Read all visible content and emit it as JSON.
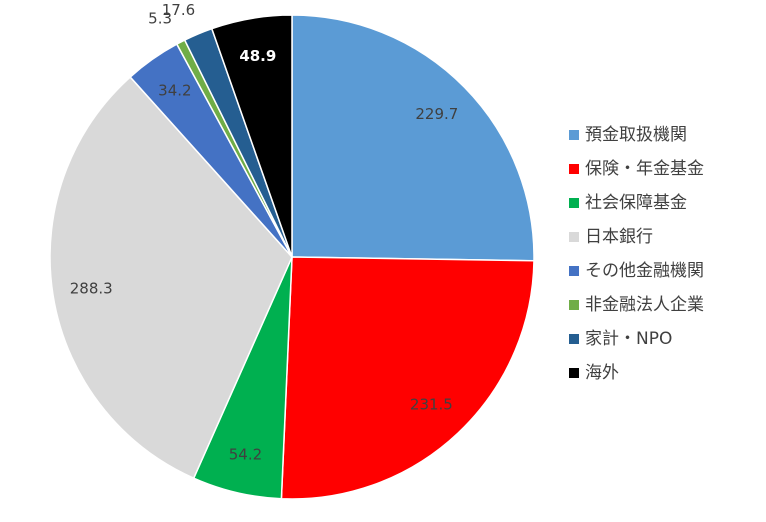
{
  "chart_data": {
    "type": "pie",
    "categories": [
      "預金取扱機関",
      "保険・年金基金",
      "社会保障基金",
      "日本銀行",
      "その他金融機関",
      "非金融法人企業",
      "家計・NPO",
      "海外"
    ],
    "values": [
      229.7,
      231.5,
      54.2,
      288.3,
      34.2,
      5.3,
      17.6,
      48.9
    ],
    "colors": [
      "#5b9bd5",
      "#ff0000",
      "#00b050",
      "#d9d9d9",
      "#4472c4",
      "#70ad47",
      "#255e91",
      "#000000"
    ],
    "legend": "right"
  }
}
